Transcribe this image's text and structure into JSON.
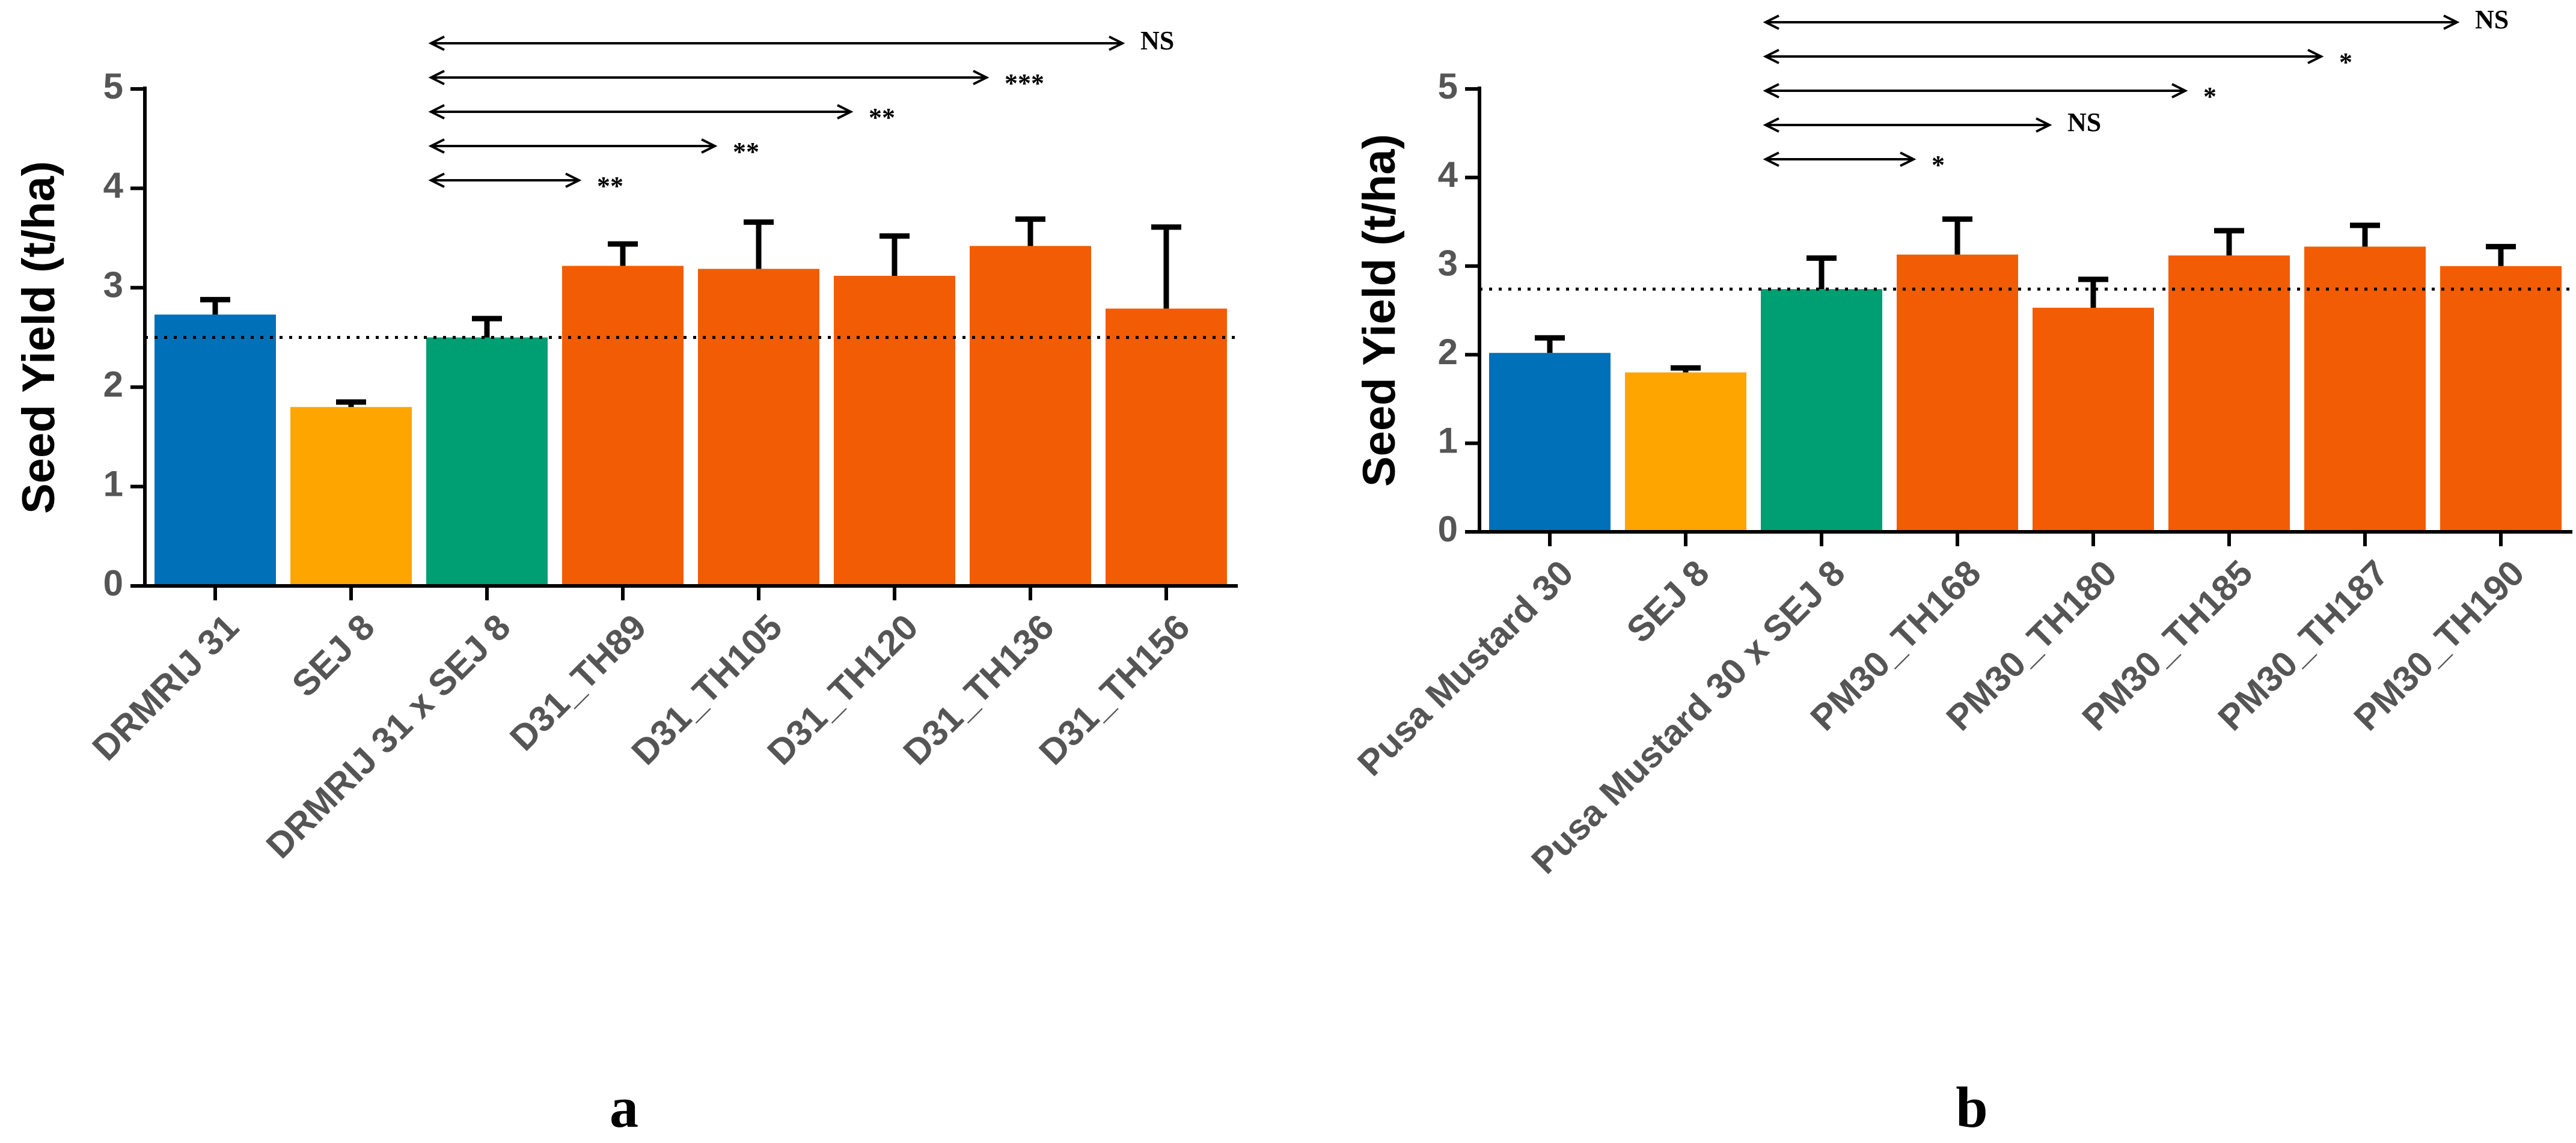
{
  "chart_data": [
    {
      "type": "bar",
      "panel_label": "a",
      "title": "",
      "xlabel": "",
      "ylabel": "Seed Yield (t/ha)",
      "ylim": [
        0,
        5
      ],
      "yticks": [
        "0",
        "1",
        "2",
        "3",
        "4",
        "5"
      ],
      "grid": false,
      "legend": "none",
      "categories": [
        "DRMRIJ 31",
        "SEJ 8",
        "DRMRIJ 31 x SEJ 8",
        "D31_TH89",
        "D31_TH105",
        "D31_TH120",
        "D31_TH136",
        "D31_TH156"
      ],
      "values": [
        2.73,
        1.8,
        2.5,
        3.22,
        3.19,
        3.12,
        3.42,
        2.79
      ],
      "errors": [
        0.15,
        0.05,
        0.19,
        0.22,
        0.47,
        0.4,
        0.27,
        0.82
      ],
      "bar_colors": [
        "#0070b8",
        "#ffa500",
        "#009e73",
        "#f25c05",
        "#f25c05",
        "#f25c05",
        "#f25c05",
        "#f25c05"
      ],
      "reference_line": 2.5,
      "comparisons": [
        {
          "from": "DRMRIJ 31 x SEJ 8",
          "to": "D31_TH89",
          "label": "**"
        },
        {
          "from": "DRMRIJ 31 x SEJ 8",
          "to": "D31_TH105",
          "label": "**"
        },
        {
          "from": "DRMRIJ 31 x SEJ 8",
          "to": "D31_TH120",
          "label": "**"
        },
        {
          "from": "DRMRIJ 31 x SEJ 8",
          "to": "D31_TH136",
          "label": "***"
        },
        {
          "from": "DRMRIJ 31 x SEJ 8",
          "to": "D31_TH156",
          "label": "NS"
        }
      ]
    },
    {
      "type": "bar",
      "panel_label": "b",
      "title": "",
      "xlabel": "",
      "ylabel": "Seed Yield (t/ha)",
      "ylim": [
        0,
        5
      ],
      "yticks": [
        "0",
        "1",
        "2",
        "3",
        "4",
        "5"
      ],
      "grid": false,
      "legend": "none",
      "categories": [
        "Pusa Mustard 30",
        "SEJ 8",
        "Pusa Mustard 30 x SEJ 8",
        "PM30_TH168",
        "PM30_TH180",
        "PM30_TH185",
        "PM30_TH187",
        "PM30_TH190"
      ],
      "values": [
        2.02,
        1.8,
        2.74,
        3.13,
        2.53,
        3.12,
        3.22,
        3.0
      ],
      "errors": [
        0.17,
        0.05,
        0.35,
        0.4,
        0.32,
        0.28,
        0.24,
        0.22
      ],
      "bar_colors": [
        "#0070b8",
        "#ffa500",
        "#009e73",
        "#f25c05",
        "#f25c05",
        "#f25c05",
        "#f25c05",
        "#f25c05"
      ],
      "reference_line": 2.74,
      "comparisons": [
        {
          "from": "Pusa Mustard 30 x SEJ 8",
          "to": "PM30_TH168",
          "label": "*"
        },
        {
          "from": "Pusa Mustard 30 x SEJ 8",
          "to": "PM30_TH180",
          "label": "NS"
        },
        {
          "from": "Pusa Mustard 30 x SEJ 8",
          "to": "PM30_TH185",
          "label": "*"
        },
        {
          "from": "Pusa Mustard 30 x SEJ 8",
          "to": "PM30_TH187",
          "label": "*"
        },
        {
          "from": "Pusa Mustard 30 x SEJ 8",
          "to": "PM30_TH190",
          "label": "NS"
        }
      ]
    }
  ]
}
